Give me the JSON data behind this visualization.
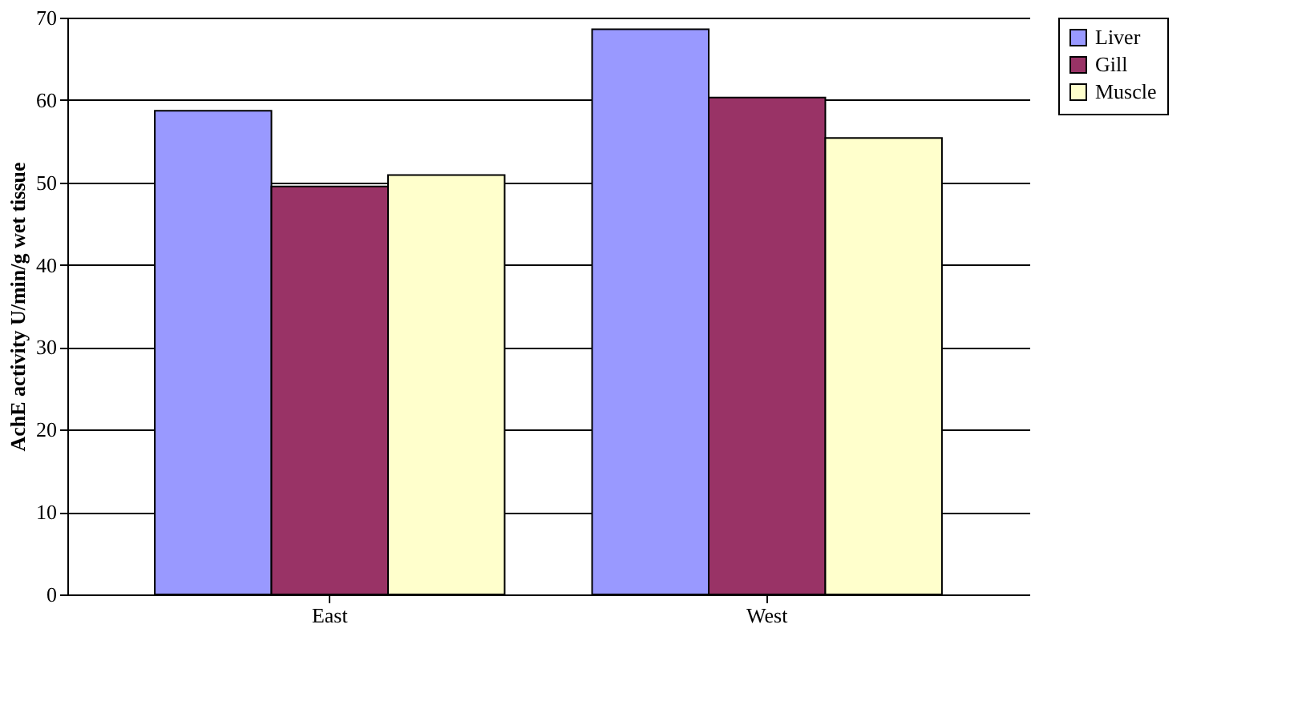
{
  "chart_data": {
    "type": "bar",
    "ylabel": "AchE activity U/min/g wet tissue",
    "categories": [
      "East",
      "West"
    ],
    "series": [
      {
        "name": "Liver",
        "color": "#9999ff",
        "values": [
          58.7,
          68.6
        ]
      },
      {
        "name": "Gill",
        "color": "#993366",
        "values": [
          49.5,
          60.3
        ]
      },
      {
        "name": "Muscle",
        "color": "#ffffcc",
        "values": [
          50.9,
          55.4
        ]
      }
    ],
    "ylim": [
      0,
      70
    ],
    "yticks": [
      0,
      10,
      20,
      30,
      40,
      50,
      60,
      70
    ],
    "grid": "y",
    "legend": "right"
  }
}
